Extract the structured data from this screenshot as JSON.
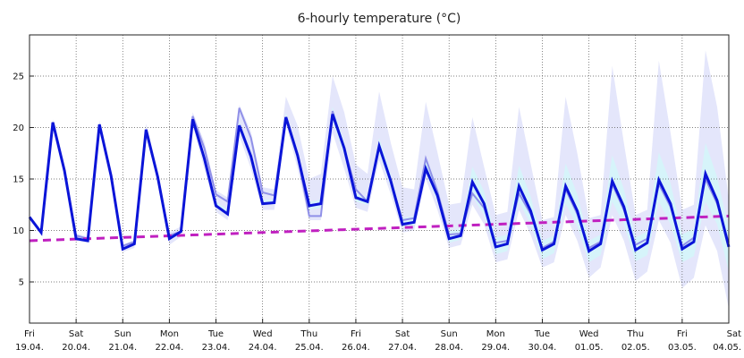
{
  "chart_data": {
    "type": "line",
    "title": "6-hourly temperature (°C)",
    "ylim": [
      1,
      29
    ],
    "yticks": [
      5,
      10,
      15,
      20,
      25
    ],
    "x_ticks": [
      {
        "day": "Fri",
        "date": "19.04."
      },
      {
        "day": "Sat",
        "date": "20.04."
      },
      {
        "day": "Sun",
        "date": "21.04."
      },
      {
        "day": "Mon",
        "date": "22.04."
      },
      {
        "day": "Tue",
        "date": "23.04."
      },
      {
        "day": "Wed",
        "date": "24.04."
      },
      {
        "day": "Thu",
        "date": "25.04."
      },
      {
        "day": "Fri",
        "date": "26.04."
      },
      {
        "day": "Sat",
        "date": "27.04."
      },
      {
        "day": "Sun",
        "date": "28.04."
      },
      {
        "day": "Mon",
        "date": "29.04."
      },
      {
        "day": "Tue",
        "date": "30.04."
      },
      {
        "day": "Wed",
        "date": "01.05."
      },
      {
        "day": "Thu",
        "date": "02.05."
      },
      {
        "day": "Fri",
        "date": "03.05."
      },
      {
        "day": "Sat",
        "date": "04.05."
      }
    ],
    "grid": true,
    "colors": {
      "main": "#0a14d8",
      "secondary": "#9090e8",
      "band_outer": "#e4e6fb",
      "band_inner": "#d6f4fa",
      "trend": "#c020c0",
      "grid": "#555555"
    },
    "series": [
      {
        "values": [
          11.3,
          9.8,
          20.5,
          15.8,
          9.2,
          9.0,
          20.3,
          15.3,
          8.2,
          8.7,
          19.8,
          15.2,
          9.2,
          9.9,
          20.8,
          17.0,
          12.4,
          11.6,
          20.2,
          17.2,
          12.6,
          12.7,
          21.0,
          17.3,
          12.4,
          12.6,
          21.3,
          18.0,
          13.2,
          12.8,
          18.2,
          14.8,
          10.6,
          10.8,
          16.0,
          13.4,
          9.2,
          9.5,
          14.7,
          12.6,
          8.4,
          8.7,
          14.3,
          11.9,
          8.1,
          8.7,
          14.3,
          11.9,
          8.0,
          8.7,
          14.8,
          12.3,
          8.1,
          8.8,
          14.9,
          12.6,
          8.2,
          8.9,
          15.5,
          12.9,
          8.4
        ]
      },
      {
        "values": [
          11.3,
          9.8,
          20.5,
          15.8,
          9.5,
          9.2,
          20.3,
          15.3,
          8.5,
          8.9,
          19.5,
          15.2,
          9.5,
          9.9,
          21.1,
          18.0,
          13.5,
          12.8,
          21.9,
          19.0,
          13.7,
          13.4,
          21.0,
          17.3,
          11.4,
          11.4,
          21.6,
          18.0,
          14.0,
          12.8,
          18.2,
          14.8,
          11.0,
          11.2,
          17.0,
          13.8,
          9.6,
          9.7,
          13.6,
          12.2,
          8.8,
          9.0,
          13.6,
          11.6,
          8.3,
          8.9,
          14.0,
          11.6,
          8.3,
          8.9,
          14.5,
          12.0,
          8.6,
          9.2,
          14.5,
          12.3,
          8.5,
          9.3,
          15.0,
          12.6,
          8.8
        ]
      },
      {
        "values": [
          9.0,
          9.04,
          9.08,
          9.12,
          9.16,
          9.2,
          9.24,
          9.28,
          9.32,
          9.36,
          9.4,
          9.44,
          9.48,
          9.52,
          9.56,
          9.6,
          9.64,
          9.68,
          9.72,
          9.76,
          9.8,
          9.84,
          9.88,
          9.92,
          9.96,
          10.0,
          10.04,
          10.08,
          10.12,
          10.16,
          10.2,
          10.24,
          10.28,
          10.32,
          10.36,
          10.4,
          10.44,
          10.48,
          10.52,
          10.56,
          10.6,
          10.64,
          10.68,
          10.72,
          10.76,
          10.8,
          10.84,
          10.88,
          10.92,
          10.96,
          11.0,
          11.04,
          11.08,
          11.12,
          11.16,
          11.2,
          11.24,
          11.28,
          11.32,
          11.36,
          11.4
        ]
      }
    ],
    "bands": [
      {
        "low": [
          11.3,
          9.8,
          20.3,
          15.6,
          9.0,
          8.8,
          20.0,
          15.0,
          7.9,
          8.3,
          19.3,
          14.8,
          8.6,
          9.4,
          20.2,
          16.0,
          11.8,
          11.0,
          19.2,
          16.0,
          12.0,
          12.0,
          20.4,
          16.0,
          11.0,
          11.0,
          19.5,
          16.0,
          12.2,
          11.8,
          16.8,
          13.5,
          9.8,
          10.0,
          15.0,
          12.0,
          8.3,
          8.6,
          12.5,
          10.6,
          6.9,
          7.2,
          12.0,
          9.6,
          6.4,
          6.9,
          11.5,
          9.0,
          5.4,
          6.4,
          11.5,
          9.0,
          5.1,
          6.0,
          11.0,
          8.8,
          4.4,
          5.4,
          10.5,
          8.0,
          2.4
        ],
        "high": [
          11.3,
          9.8,
          20.8,
          16.2,
          9.7,
          9.4,
          20.7,
          15.8,
          8.6,
          9.1,
          20.4,
          15.8,
          9.8,
          10.4,
          21.5,
          18.6,
          13.9,
          13.2,
          22.2,
          19.6,
          14.2,
          14.0,
          23.0,
          20.2,
          15.0,
          15.5,
          25.0,
          21.5,
          16.4,
          15.5,
          23.5,
          18.5,
          14.2,
          14.0,
          22.5,
          17.6,
          12.5,
          12.7,
          21.0,
          16.2,
          11.5,
          11.8,
          22.0,
          16.5,
          11.0,
          11.3,
          23.0,
          17.5,
          11.2,
          11.5,
          26.0,
          18.5,
          11.5,
          12.0,
          26.5,
          19.5,
          12.0,
          12.5,
          27.5,
          22.0,
          13.0
        ]
      },
      {
        "low": [
          11.3,
          9.8,
          20.5,
          15.8,
          9.2,
          9.0,
          20.3,
          15.3,
          8.2,
          8.7,
          19.8,
          15.2,
          9.2,
          9.9,
          20.8,
          17.0,
          12.4,
          11.6,
          20.0,
          17.0,
          12.5,
          12.6,
          20.8,
          17.0,
          12.0,
          12.2,
          20.6,
          17.4,
          12.8,
          12.5,
          17.6,
          14.2,
          10.3,
          10.5,
          15.6,
          12.8,
          8.8,
          9.1,
          13.3,
          11.5,
          7.7,
          8.0,
          12.8,
          10.6,
          7.2,
          7.8,
          12.6,
          10.4,
          6.9,
          7.6,
          12.8,
          10.6,
          7.0,
          7.6,
          12.8,
          10.6,
          6.9,
          7.5,
          12.8,
          10.6,
          6.0
        ],
        "high": [
          11.3,
          9.8,
          20.5,
          15.8,
          9.3,
          9.1,
          20.4,
          15.4,
          8.3,
          8.8,
          19.9,
          15.3,
          9.3,
          10.0,
          21.0,
          17.4,
          12.8,
          12.0,
          20.6,
          17.6,
          13.0,
          13.0,
          21.4,
          17.8,
          12.8,
          13.0,
          22.0,
          18.6,
          13.6,
          13.2,
          19.0,
          15.4,
          11.2,
          11.4,
          17.2,
          14.2,
          9.9,
          10.2,
          16.2,
          13.8,
          9.3,
          9.6,
          16.3,
          13.3,
          9.0,
          9.5,
          16.5,
          13.5,
          9.0,
          9.6,
          17.3,
          14.0,
          9.3,
          9.9,
          17.6,
          14.6,
          9.6,
          10.2,
          18.5,
          15.2,
          10.2
        ]
      }
    ]
  }
}
